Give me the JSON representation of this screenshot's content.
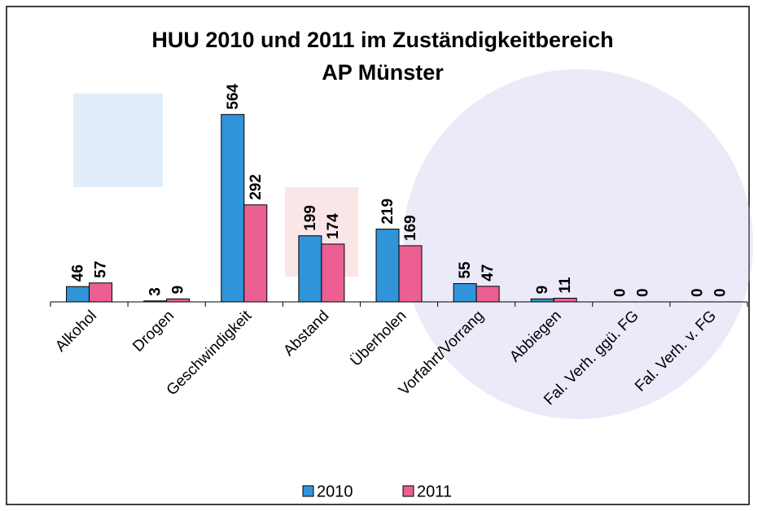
{
  "chart_data": {
    "type": "bar",
    "title": "HUU 2010 und 2011 im Zuständigkeitbereich",
    "subtitle": "AP Münster",
    "categories": [
      "Alkohol",
      "Drogen",
      "Geschwindigkeit",
      "Abstand",
      "Überholen",
      "Vorfahrt/Vorrang",
      "Abbiegen",
      "Fal. Verh. ggü. FG",
      "Fal. Verh. v. FG"
    ],
    "series": [
      {
        "name": "2010",
        "color": "#2f94d8",
        "values": [
          46,
          3,
          564,
          199,
          219,
          55,
          9,
          0,
          0
        ]
      },
      {
        "name": "2011",
        "color": "#ec5f92",
        "values": [
          57,
          9,
          292,
          174,
          169,
          47,
          11,
          0,
          0
        ]
      }
    ],
    "ylim": [
      0,
      600
    ],
    "legend": "bottom"
  }
}
